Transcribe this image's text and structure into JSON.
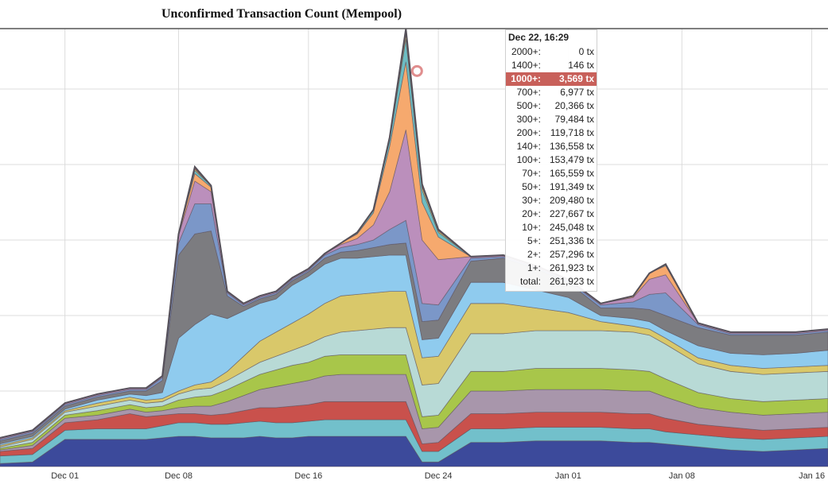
{
  "chart_data": {
    "type": "area",
    "stacked": true,
    "title": "Unconfirmed Transaction Count (Mempool)",
    "xlabel": "",
    "ylabel": "",
    "x_range": [
      "2017-11-27",
      "2018-01-17"
    ],
    "x_ticks": [
      "Dec 01",
      "Dec 08",
      "Dec 16",
      "Dec 24",
      "Jan 01",
      "Jan 08",
      "Jan 16"
    ],
    "ylim": [
      0,
      290000
    ],
    "grid": true,
    "legend": "none",
    "x": [
      "2017-11-27",
      "2017-11-29",
      "2017-12-01",
      "2017-12-03",
      "2017-12-05",
      "2017-12-06",
      "2017-12-07",
      "2017-12-08",
      "2017-12-09",
      "2017-12-10",
      "2017-12-11",
      "2017-12-12",
      "2017-12-13",
      "2017-12-14",
      "2017-12-15",
      "2017-12-16",
      "2017-12-17",
      "2017-12-18",
      "2017-12-19",
      "2017-12-20",
      "2017-12-21",
      "2017-12-22",
      "2017-12-23",
      "2017-12-24",
      "2017-12-26",
      "2017-12-28",
      "2017-12-30",
      "2018-01-01",
      "2018-01-03",
      "2018-01-05",
      "2018-01-06",
      "2018-01-07",
      "2018-01-09",
      "2018-01-11",
      "2018-01-13",
      "2018-01-15",
      "2018-01-17"
    ],
    "series": [
      {
        "bucket": "1+",
        "color": "#3c4a9b",
        "values": [
          2000,
          3000,
          18000,
          18000,
          18000,
          18000,
          19000,
          20000,
          20000,
          19000,
          19000,
          19000,
          20000,
          19000,
          19000,
          20000,
          20000,
          20000,
          20000,
          20000,
          20000,
          20000,
          3000,
          3000,
          16000,
          16000,
          17000,
          17000,
          17000,
          16000,
          16000,
          15000,
          13000,
          11000,
          10000,
          11000,
          12000
        ]
      },
      {
        "bucket": "2+",
        "color": "#72c0cb",
        "values": [
          5000,
          5000,
          6000,
          7000,
          7000,
          7000,
          8000,
          9000,
          9000,
          9000,
          9000,
          10000,
          10000,
          10000,
          10000,
          10000,
          11000,
          11000,
          11000,
          11000,
          11000,
          11000,
          7000,
          7000,
          9000,
          9000,
          9000,
          9000,
          9000,
          9000,
          9000,
          8000,
          8000,
          8000,
          8000,
          8000,
          8000
        ]
      },
      {
        "bucket": "5+",
        "color": "#c9514c",
        "values": [
          3000,
          4000,
          5000,
          6000,
          10000,
          8000,
          7000,
          6000,
          6000,
          6000,
          7000,
          8000,
          9000,
          10000,
          11000,
          11000,
          12000,
          12000,
          12000,
          12000,
          12000,
          12000,
          5000,
          6000,
          10000,
          10000,
          10000,
          10000,
          10000,
          10000,
          10000,
          9000,
          7000,
          7000,
          6000,
          6000,
          6000
        ]
      },
      {
        "bucket": "10+",
        "color": "#a896ab",
        "values": [
          1000,
          2000,
          3000,
          3000,
          3000,
          3000,
          3000,
          4000,
          5000,
          6000,
          8000,
          10000,
          12000,
          14000,
          15000,
          16000,
          17000,
          18000,
          18000,
          18000,
          18000,
          18000,
          10000,
          10000,
          15000,
          15000,
          15000,
          15000,
          15000,
          15000,
          15000,
          14000,
          11000,
          10000,
          10000,
          10000,
          10000
        ]
      },
      {
        "bucket": "20+",
        "color": "#a8c64a",
        "values": [
          1000,
          2000,
          2000,
          3000,
          3000,
          3000,
          3000,
          5000,
          6000,
          7000,
          8000,
          9000,
          10000,
          11000,
          12000,
          12000,
          13000,
          13000,
          13000,
          13000,
          13000,
          13000,
          8000,
          8000,
          13000,
          13000,
          14000,
          14000,
          14000,
          14000,
          13000,
          12000,
          10000,
          9000,
          9000,
          9000,
          9000
        ]
      },
      {
        "bucket": "30+",
        "color": "#b8dad6",
        "values": [
          1000,
          2000,
          2000,
          3000,
          3000,
          3000,
          3000,
          4000,
          5000,
          5000,
          6000,
          7000,
          8000,
          9000,
          10000,
          12000,
          13000,
          15000,
          16000,
          17000,
          18000,
          18000,
          21000,
          21000,
          25000,
          25000,
          25000,
          25000,
          25000,
          25000,
          24000,
          23000,
          19000,
          18000,
          18000,
          18000,
          18000
        ]
      },
      {
        "bucket": "50+",
        "color": "#d9c86a",
        "values": [
          1000,
          1000,
          1000,
          2000,
          2000,
          2000,
          2000,
          2000,
          3000,
          4000,
          6000,
          10000,
          14000,
          16000,
          18000,
          20000,
          22000,
          24000,
          24000,
          24000,
          24000,
          24000,
          18000,
          18000,
          20000,
          20000,
          15000,
          12000,
          6000,
          4000,
          4000,
          4000,
          4000,
          4000,
          4000,
          4000,
          4000
        ]
      },
      {
        "bucket": "70+",
        "color": "#8fcbee",
        "values": [
          1000,
          1000,
          1000,
          2000,
          2000,
          3000,
          4000,
          35000,
          40000,
          45000,
          35000,
          30000,
          25000,
          22000,
          25000,
          25000,
          26000,
          25000,
          24000,
          24000,
          24000,
          24000,
          12000,
          12000,
          14000,
          14000,
          12000,
          10000,
          4000,
          5000,
          5000,
          5000,
          8000,
          8000,
          9000,
          9000,
          10000
        ]
      },
      {
        "bucket": "100+",
        "color": "#7c7c80",
        "values": [
          2000,
          2000,
          2000,
          2000,
          2000,
          3000,
          8000,
          55000,
          60000,
          55000,
          15000,
          3000,
          3000,
          3000,
          3000,
          3000,
          4000,
          4000,
          5000,
          6000,
          7000,
          8000,
          12000,
          12000,
          14000,
          16000,
          14000,
          10000,
          5000,
          7000,
          8000,
          10000,
          12000,
          12000,
          13000,
          12000,
          12000
        ]
      },
      {
        "bucket": "140+",
        "color": "#7b97c8",
        "values": [
          1000,
          1000,
          1000,
          1000,
          1000,
          1000,
          2000,
          8000,
          20000,
          18000,
          2000,
          1000,
          1000,
          1000,
          1000,
          1000,
          2000,
          3000,
          4000,
          5000,
          10000,
          15000,
          12000,
          10000,
          2000,
          1000,
          1000,
          1000,
          2000,
          4000,
          10000,
          15000,
          2000,
          1000,
          1000,
          1000,
          1000
        ]
      },
      {
        "bucket": "200+",
        "color": "#bb8fbc",
        "values": [
          1000,
          1000,
          1000,
          1000,
          1000,
          1000,
          1000,
          5000,
          15000,
          8000,
          1000,
          1000,
          1000,
          1000,
          1000,
          1000,
          1000,
          2000,
          4000,
          10000,
          25000,
          60000,
          42000,
          30000,
          1000,
          1000,
          1000,
          1000,
          1000,
          3000,
          10000,
          12000,
          1000,
          1000,
          1000,
          1000,
          1000
        ]
      },
      {
        "bucket": "300+",
        "color": "#f6a96e",
        "values": [
          0,
          0,
          0,
          0,
          0,
          0,
          0,
          1000,
          5000,
          3000,
          0,
          0,
          0,
          0,
          0,
          0,
          0,
          1000,
          3000,
          8000,
          30000,
          45000,
          25000,
          15000,
          0,
          0,
          0,
          0,
          0,
          1000,
          4000,
          6000,
          0,
          0,
          0,
          0,
          0
        ]
      },
      {
        "bucket": "500+",
        "color": "#6dbdc3",
        "values": [
          0,
          0,
          0,
          0,
          0,
          0,
          0,
          0,
          2000,
          1000,
          0,
          0,
          0,
          0,
          0,
          0,
          0,
          0,
          1000,
          2000,
          4000,
          15000,
          8000,
          3000,
          0,
          0,
          0,
          0,
          0,
          0,
          0,
          1000,
          0,
          0,
          0,
          0,
          0
        ]
      },
      {
        "bucket": "700+",
        "color": "#dcd672",
        "values": [
          0,
          0,
          0,
          0,
          0,
          0,
          0,
          0,
          1000,
          0,
          0,
          0,
          0,
          0,
          0,
          0,
          0,
          0,
          0,
          0,
          1000,
          3000,
          2000,
          1000,
          0,
          0,
          0,
          0,
          0,
          0,
          0,
          0,
          0,
          0,
          0,
          0,
          0
        ]
      },
      {
        "bucket": "1000+",
        "color": "#c8605a",
        "values": [
          0,
          0,
          0,
          0,
          0,
          0,
          0,
          0,
          1000,
          0,
          0,
          0,
          0,
          0,
          0,
          0,
          0,
          0,
          0,
          0,
          1000,
          3569,
          2000,
          1000,
          0,
          0,
          0,
          0,
          0,
          0,
          0,
          0,
          0,
          0,
          0,
          0,
          0
        ]
      },
      {
        "bucket": "1400+",
        "color": "#9b7eb0",
        "values": [
          0,
          0,
          0,
          0,
          0,
          0,
          0,
          0,
          500,
          0,
          0,
          0,
          0,
          0,
          0,
          0,
          0,
          0,
          0,
          0,
          0,
          146,
          0,
          0,
          0,
          0,
          0,
          0,
          0,
          0,
          0,
          0,
          0,
          0,
          0,
          0,
          0
        ]
      }
    ],
    "annotations": {
      "marker_at": "2017-12-22 16:29",
      "marker_value": 261923
    },
    "tooltip": {
      "date": "Dec 22, 16:29",
      "highlight": "1000+:",
      "rows": [
        {
          "label": "2000+:",
          "value": "0 tx"
        },
        {
          "label": "1400+:",
          "value": "146 tx"
        },
        {
          "label": "1000+:",
          "value": "3,569 tx"
        },
        {
          "label": "700+:",
          "value": "6,977 tx"
        },
        {
          "label": "500+:",
          "value": "20,366 tx"
        },
        {
          "label": "300+:",
          "value": "79,484 tx"
        },
        {
          "label": "200+:",
          "value": "119,718 tx"
        },
        {
          "label": "140+:",
          "value": "136,558 tx"
        },
        {
          "label": "100+:",
          "value": "153,479 tx"
        },
        {
          "label": "70+:",
          "value": "165,559 tx"
        },
        {
          "label": "50+:",
          "value": "191,349 tx"
        },
        {
          "label": "30+:",
          "value": "209,480 tx"
        },
        {
          "label": "20+:",
          "value": "227,667 tx"
        },
        {
          "label": "10+:",
          "value": "245,048 tx"
        },
        {
          "label": "5+:",
          "value": "251,336 tx"
        },
        {
          "label": "2+:",
          "value": "257,296 tx"
        },
        {
          "label": "1+:",
          "value": "261,923 tx"
        },
        {
          "label": "total:",
          "value": "261,923 tx"
        }
      ]
    }
  }
}
